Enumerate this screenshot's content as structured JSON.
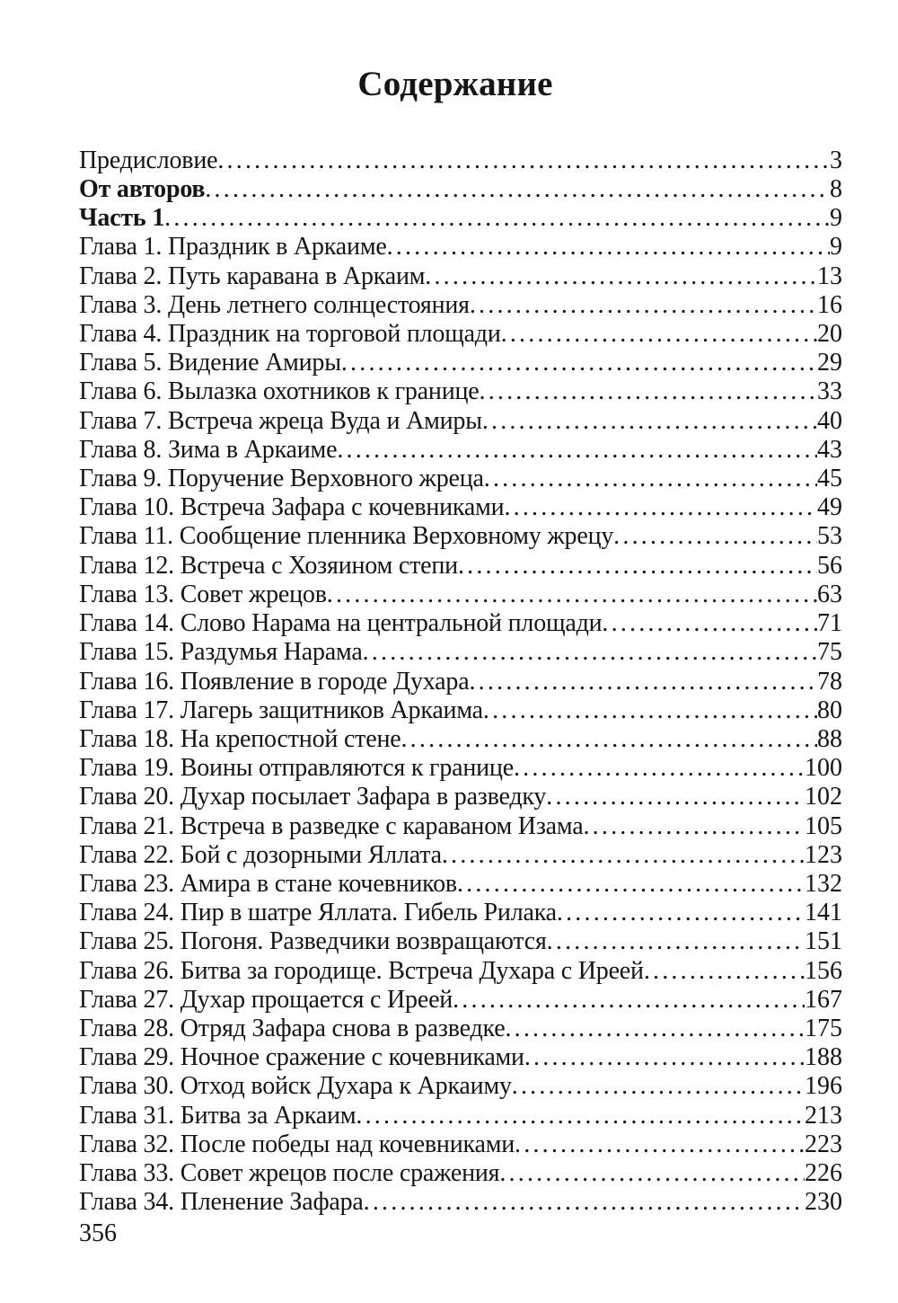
{
  "header": {
    "title": "Содержание"
  },
  "toc": {
    "entries": [
      {
        "title": "Предисловие",
        "page": "3",
        "bold": false
      },
      {
        "title": "От авторов",
        "page": "8",
        "bold": true
      },
      {
        "title": "Часть 1",
        "page": "9",
        "bold": true
      },
      {
        "title": "Глава 1. Праздник в Аркаиме",
        "page": "9",
        "bold": false
      },
      {
        "title": "Глава 2. Путь каравана в Аркаим",
        "page": "13",
        "bold": false
      },
      {
        "title": "Глава 3. День летнего солнцестояния",
        "page": "16",
        "bold": false
      },
      {
        "title": "Глава 4. Праздник на торговой площади",
        "page": "20",
        "bold": false
      },
      {
        "title": "Глава 5. Видение Амиры",
        "page": "29",
        "bold": false
      },
      {
        "title": "Глава 6. Вылазка охотников к границе",
        "page": "33",
        "bold": false
      },
      {
        "title": "Глава 7. Встреча жреца Вуда и Амиры",
        "page": "40",
        "bold": false
      },
      {
        "title": "Глава 8. Зима в Аркаиме",
        "page": "43",
        "bold": false
      },
      {
        "title": "Глава 9. Поручение Верховного жреца",
        "page": "45",
        "bold": false
      },
      {
        "title": "Глава 10. Встреча Зафара с кочевниками",
        "page": "49",
        "bold": false
      },
      {
        "title": "Глава 11. Сообщение пленника Верховному жрецу",
        "page": "53",
        "bold": false
      },
      {
        "title": "Глава 12. Встреча с Хозяином степи",
        "page": "56",
        "bold": false
      },
      {
        "title": "Глава 13. Совет жрецов",
        "page": "63",
        "bold": false
      },
      {
        "title": "Глава 14. Слово Нарама на центральной площади",
        "page": "71",
        "bold": false
      },
      {
        "title": "Глава 15. Раздумья Нарама",
        "page": "75",
        "bold": false
      },
      {
        "title": "Глава 16. Появление в городе Духара",
        "page": "78",
        "bold": false
      },
      {
        "title": "Глава 17. Лагерь защитников Аркаима",
        "page": "80",
        "bold": false
      },
      {
        "title": "Глава 18. На крепостной стене",
        "page": "88",
        "bold": false
      },
      {
        "title": "Глава 19. Воины отправляются к границе",
        "page": "100",
        "bold": false
      },
      {
        "title": "Глава 20. Духар посылает Зафара в разведку",
        "page": "102",
        "bold": false
      },
      {
        "title": "Глава 21. Встреча в разведке с караваном Изама",
        "page": "105",
        "bold": false
      },
      {
        "title": "Глава 22. Бой с дозорными Яллата",
        "page": "123",
        "bold": false
      },
      {
        "title": "Глава 23. Амира в стане кочевников",
        "page": "132",
        "bold": false
      },
      {
        "title": "Глава 24. Пир в шатре Яллата. Гибель Рилака",
        "page": "141",
        "bold": false
      },
      {
        "title": "Глава 25. Погоня. Разведчики возвращаются",
        "page": "151",
        "bold": false
      },
      {
        "title": "Глава 26. Битва за городище.  Встреча Духара с Иреей",
        "page": "156",
        "bold": false
      },
      {
        "title": "Глава 27. Духар  прощается с Иреей",
        "page": "167",
        "bold": false
      },
      {
        "title": "Глава 28. Отряд Зафара снова в разведке",
        "page": "175",
        "bold": false
      },
      {
        "title": "Глава 29. Ночное сражение с кочевниками",
        "page": "188",
        "bold": false
      },
      {
        "title": "Глава 30. Отход войск Духара к Аркаиму",
        "page": "196",
        "bold": false
      },
      {
        "title": "Глава 31. Битва за Аркаим",
        "page": "213",
        "bold": false
      },
      {
        "title": "Глава 32. После победы над кочевниками",
        "page": "223",
        "bold": false
      },
      {
        "title": "Глава 33. Совет жрецов после сражения",
        "page": "226",
        "bold": false
      },
      {
        "title": "Глава 34. Пленение Зафара",
        "page": "230",
        "bold": false
      }
    ]
  },
  "footer": {
    "page_number": "356"
  }
}
